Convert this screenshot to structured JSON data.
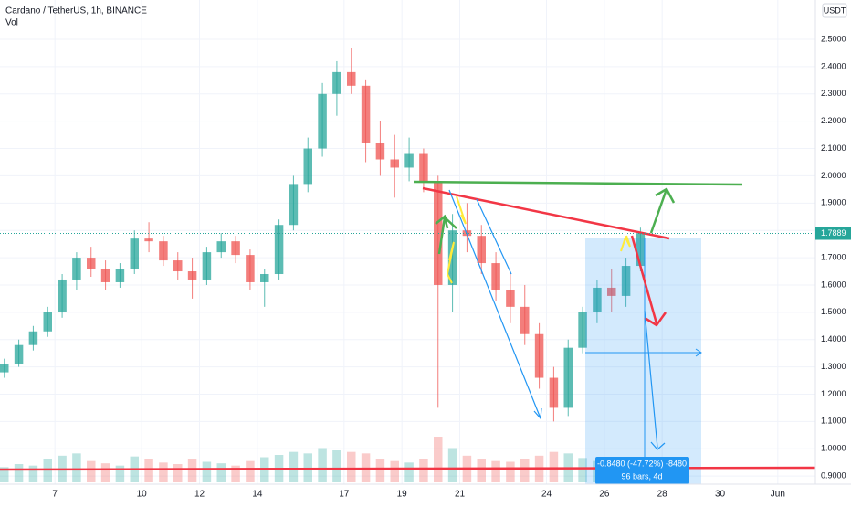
{
  "chart_data": {
    "type": "candlestick",
    "title": "Cardano / TetherUS, 1h, BINANCE",
    "indicator": "Vol",
    "currency": "USDT",
    "x": [
      5.25,
      5.75,
      6.25,
      6.75,
      7.25,
      7.75,
      8.25,
      8.75,
      9.25,
      9.75,
      10.25,
      10.75,
      11.25,
      11.75,
      12.25,
      12.75,
      13.25,
      13.75,
      14.25,
      14.75,
      15.25,
      15.75,
      16.25,
      16.75,
      17.25,
      17.75,
      18.25,
      18.75,
      19.25,
      19.75,
      20.25,
      20.75,
      21.25,
      21.75,
      22.25,
      22.75,
      23.25,
      23.75,
      24.25,
      24.75,
      25.25,
      25.75,
      26.25,
      26.75,
      27.25
    ],
    "open": [
      1.28,
      1.31,
      1.38,
      1.43,
      1.5,
      1.62,
      1.7,
      1.66,
      1.61,
      1.66,
      1.77,
      1.76,
      1.69,
      1.65,
      1.62,
      1.72,
      1.76,
      1.71,
      1.61,
      1.64,
      1.82,
      1.97,
      2.1,
      2.3,
      2.38,
      2.33,
      2.12,
      2.06,
      2.03,
      2.08,
      1.98,
      1.6,
      1.8,
      1.78,
      1.68,
      1.58,
      1.52,
      1.42,
      1.26,
      1.15,
      1.37,
      1.5,
      1.59,
      1.56,
      1.67
    ],
    "high": [
      1.33,
      1.4,
      1.45,
      1.52,
      1.64,
      1.72,
      1.74,
      1.69,
      1.68,
      1.8,
      1.83,
      1.78,
      1.72,
      1.7,
      1.74,
      1.79,
      1.78,
      1.73,
      1.66,
      1.84,
      2.0,
      2.14,
      2.34,
      2.42,
      2.47,
      2.35,
      2.2,
      2.15,
      2.14,
      2.1,
      2.0,
      1.86,
      1.9,
      1.82,
      1.72,
      1.65,
      1.6,
      1.46,
      1.3,
      1.4,
      1.52,
      1.62,
      1.66,
      1.7,
      1.81
    ],
    "low": [
      1.26,
      1.3,
      1.36,
      1.41,
      1.48,
      1.58,
      1.63,
      1.58,
      1.59,
      1.64,
      1.72,
      1.67,
      1.62,
      1.55,
      1.6,
      1.7,
      1.68,
      1.58,
      1.52,
      1.62,
      1.8,
      1.94,
      2.07,
      2.22,
      2.3,
      2.05,
      2.0,
      1.92,
      1.98,
      1.94,
      1.15,
      1.5,
      1.72,
      1.64,
      1.54,
      1.46,
      1.38,
      1.22,
      1.1,
      1.12,
      1.35,
      1.46,
      1.5,
      1.52,
      1.65
    ],
    "close": [
      1.31,
      1.38,
      1.43,
      1.5,
      1.62,
      1.7,
      1.66,
      1.61,
      1.66,
      1.77,
      1.76,
      1.69,
      1.65,
      1.62,
      1.72,
      1.76,
      1.71,
      1.61,
      1.64,
      1.82,
      1.97,
      2.1,
      2.3,
      2.38,
      2.33,
      2.12,
      2.06,
      2.03,
      2.08,
      1.98,
      1.6,
      1.8,
      1.78,
      1.68,
      1.58,
      1.52,
      1.42,
      1.26,
      1.15,
      1.37,
      1.5,
      1.59,
      1.56,
      1.67,
      1.79
    ],
    "volume": [
      20,
      24,
      22,
      30,
      35,
      38,
      28,
      25,
      22,
      34,
      30,
      26,
      24,
      30,
      27,
      25,
      22,
      28,
      33,
      36,
      40,
      38,
      45,
      42,
      40,
      38,
      30,
      28,
      26,
      30,
      60,
      45,
      35,
      30,
      28,
      27,
      30,
      35,
      40,
      38,
      32,
      28,
      26,
      27,
      30
    ],
    "up_color": "#26a69a",
    "down_color": "#ef5350",
    "last_price": 1.7889,
    "xlim": [
      5.1,
      33.3
    ],
    "ylim": [
      0.877,
      2.644
    ],
    "xticks": [
      7,
      10,
      12,
      14,
      17,
      19,
      21,
      24,
      26,
      28,
      30,
      {
        "value": 32,
        "label": "Jun"
      }
    ],
    "yticks": [
      {
        "value": 0.9,
        "label": "0.9000"
      },
      {
        "value": 1.0,
        "label": "1.0000"
      },
      {
        "value": 1.1,
        "label": "1.1000"
      },
      {
        "value": 1.2,
        "label": "1.2000"
      },
      {
        "value": 1.3,
        "label": "1.3000"
      },
      {
        "value": 1.4,
        "label": "1.4000"
      },
      {
        "value": 1.5,
        "label": "1.5000"
      },
      {
        "value": 1.6,
        "label": "1.6000"
      },
      {
        "value": 1.7,
        "label": "1.7000"
      },
      {
        "value": 1.8,
        "label": "1.8000"
      },
      {
        "value": 1.9,
        "label": "1.9000"
      },
      {
        "value": 2.0,
        "label": "2.0000"
      },
      {
        "value": 2.1,
        "label": "2.1000"
      },
      {
        "value": 2.2,
        "label": "2.2000"
      },
      {
        "value": 2.3,
        "label": "2.3000"
      },
      {
        "value": 2.4,
        "label": "2.4000"
      },
      {
        "value": 2.5,
        "label": "2.5000"
      }
    ],
    "grid": true,
    "measure": {
      "change": "-0.8480 (-47.72%) -8480",
      "range": "96 bars, 4d"
    }
  }
}
